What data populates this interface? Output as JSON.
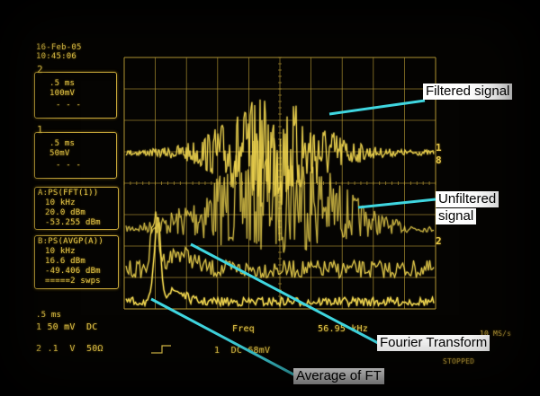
{
  "datetime": {
    "date": "16-Feb-05",
    "time": "10:45:06"
  },
  "ch2_box": {
    "number": "2",
    "timebase": ".5 ms",
    "scale": "100mV",
    "dashes": "- - -"
  },
  "ch1_box": {
    "number": "1",
    "timebase": ".5 ms",
    "scale": "50mV",
    "dashes": "- - -"
  },
  "mathA_box": {
    "title": "A:PS(FFT(1))",
    "span": "10 kHz",
    "ref": "20.0 dBm",
    "value": "-53.255 dBm"
  },
  "mathB_box": {
    "title": "B:PS(AVGP(A))",
    "span": "10 kHz",
    "ref": "16.6 dBm",
    "value": "-49.406 dBm",
    "sweeps": "=====2 swps"
  },
  "bottom": {
    "timebase": ".5 ms",
    "ch1": "1 50 mV  DC",
    "ch2": "2 .1  V  50Ω",
    "freq_label": "Freq",
    "freq_value": "56.95 kHz",
    "trig": "1  DC 68mV",
    "sample": "10 MS/s",
    "state": "STOPPED"
  },
  "markers": {
    "m1": "1",
    "m8": "8",
    "m2": "2"
  },
  "annotations": {
    "filtered": "Filtered signal",
    "unfiltered_1": "Unfiltered",
    "unfiltered_2": "signal",
    "fourier": "Fourier Transform",
    "average": "Average of FT"
  },
  "colors": {
    "trace": "#f2d74f",
    "pointer": "#3fd6e0",
    "grid": "#b89a34"
  }
}
